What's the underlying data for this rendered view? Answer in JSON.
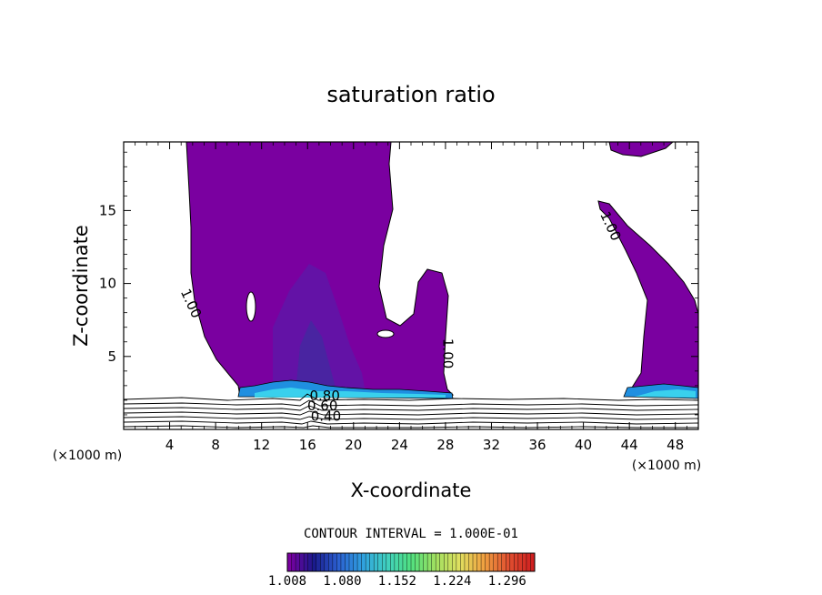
{
  "chart_data": {
    "type": "contour",
    "title": "saturation ratio",
    "xlabel": "X-coordinate",
    "ylabel": "Z-coordinate",
    "x_units": "(×1000 m)",
    "x_units_right": "(×1000 m)",
    "xlim": [
      0,
      50
    ],
    "ylim": [
      0,
      19.7
    ],
    "x_ticks": [
      4,
      8,
      12,
      16,
      20,
      24,
      28,
      32,
      36,
      40,
      44,
      48
    ],
    "y_ticks": [
      5,
      10,
      15
    ],
    "contour_interval_label": "CONTOUR INTERVAL = 1.000E-01",
    "colorbar": {
      "min": 1.008,
      "max": 1.332,
      "tick_labels": [
        "1.008",
        "1.080",
        "1.152",
        "1.224",
        "1.296"
      ],
      "colors": [
        "#7a00a0",
        "#1a1a8c",
        "#2b5fd0",
        "#2fa0e0",
        "#40d0c0",
        "#50e080",
        "#a0e060",
        "#e0e060",
        "#f0a040",
        "#e05030",
        "#d02020"
      ]
    },
    "contour_labels": [
      {
        "text": "1.00",
        "x": 5.5,
        "z": 8.5
      },
      {
        "text": "1.00",
        "x": 27.8,
        "z": 5.2
      },
      {
        "text": "1.00",
        "x": 42.0,
        "z": 13.8
      },
      {
        "text": "0.80",
        "x": 17.5,
        "z": 2.0
      },
      {
        "text": "0.60",
        "x": 17.3,
        "z": 1.3
      },
      {
        "text": "0.40",
        "x": 17.6,
        "z": 0.6
      }
    ],
    "regions": [
      {
        "name": "left-saturated-region",
        "level": 1.008
      },
      {
        "name": "right-saturated-region",
        "level": 1.008
      },
      {
        "name": "top-right-saturated-region",
        "level": 1.008
      }
    ]
  }
}
